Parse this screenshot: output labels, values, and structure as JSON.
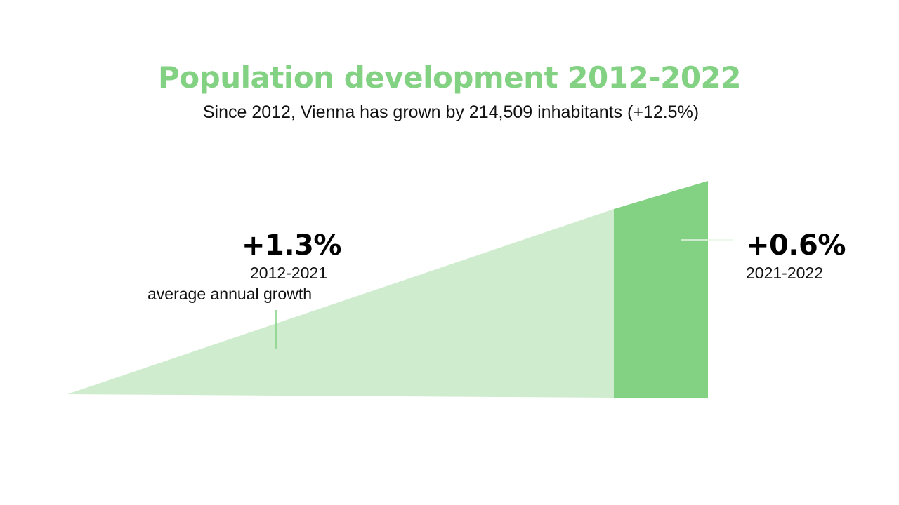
{
  "title": "Population development 2012-2022",
  "subtitle": "Since 2012, Vienna has grown by 214,509 inhabitants (+12.5%)",
  "colors": {
    "accent": "#83d183",
    "light_fill": "#cfecce",
    "dark_fill": "#83d183",
    "text": "#111111"
  },
  "stats": {
    "period_2012_2021": {
      "value": "+1.3%",
      "period": "2012-2021",
      "description": "average annual growth"
    },
    "period_2021_2022": {
      "value": "+0.6%",
      "period": "2021-2022"
    }
  }
}
